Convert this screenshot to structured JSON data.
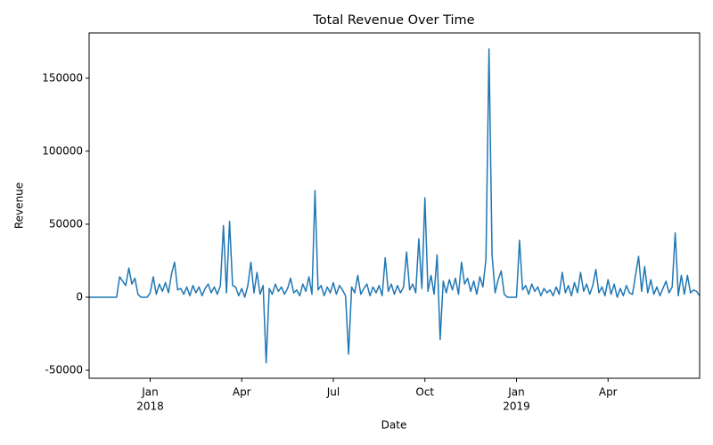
{
  "chart_data": {
    "type": "line",
    "title": "Total Revenue Over Time",
    "x_label": "Date",
    "y_label": "Revenue",
    "color": "#1f77b4",
    "x": [
      0,
      0.1,
      0.2,
      0.3,
      0.4,
      0.5,
      0.6,
      0.7,
      0.8,
      0.9,
      1,
      1.1,
      1.2,
      1.3,
      1.4,
      1.5,
      1.6,
      1.7,
      1.8,
      1.9,
      2,
      2.1,
      2.2,
      2.3,
      2.4,
      2.5,
      2.6,
      2.7,
      2.8,
      2.9,
      3,
      3.1,
      3.2,
      3.3,
      3.4,
      3.5,
      3.6,
      3.7,
      3.8,
      3.9,
      4,
      4.1,
      4.2,
      4.3,
      4.4,
      4.5,
      4.6,
      4.7,
      4.8,
      4.9,
      5,
      5.1,
      5.2,
      5.3,
      5.4,
      5.5,
      5.6,
      5.7,
      5.8,
      5.9,
      6,
      6.1,
      6.2,
      6.3,
      6.4,
      6.5,
      6.6,
      6.7,
      6.8,
      6.9,
      7,
      7.1,
      7.2,
      7.3,
      7.4,
      7.5,
      7.6,
      7.7,
      7.8,
      7.9,
      8,
      8.1,
      8.2,
      8.3,
      8.4,
      8.5,
      8.6,
      8.7,
      8.8,
      8.9,
      9,
      9.1,
      9.2,
      9.3,
      9.4,
      9.5,
      9.6,
      9.7,
      9.8,
      9.9,
      10,
      10.1,
      10.2,
      10.3,
      10.4,
      10.5,
      10.6,
      10.7,
      10.8,
      10.9,
      11,
      11.1,
      11.2,
      11.3,
      11.4,
      11.5,
      11.6,
      11.7,
      11.8,
      11.9,
      12,
      12.1,
      12.2,
      12.3,
      12.4,
      12.5,
      12.6,
      12.7,
      12.8,
      12.9,
      13,
      13.1,
      13.2,
      13.3,
      13.4,
      13.5,
      13.6,
      13.7,
      13.8,
      13.9,
      14,
      14.1,
      14.2,
      14.3,
      14.4,
      14.5,
      14.6,
      14.7,
      14.8,
      14.9,
      15,
      15.1,
      15.2,
      15.3,
      15.4,
      15.5,
      15.6,
      15.7,
      15.8,
      15.9,
      16,
      16.1,
      16.2,
      16.3,
      16.4,
      16.5,
      16.6,
      16.7,
      16.8,
      16.9,
      17,
      17.1,
      17.2,
      17.3,
      17.4,
      17.5,
      17.6,
      17.7,
      17.8,
      17.9,
      18,
      18.1,
      18.2,
      18.3,
      18.4,
      18.5,
      18.6,
      18.7,
      18.8,
      18.9,
      19,
      19.1,
      19.2,
      19.3,
      19.4,
      19.5,
      19.6,
      19.7,
      19.8,
      19.9,
      20
    ],
    "values": [
      0,
      0,
      0,
      0,
      0,
      0,
      0,
      0,
      0,
      0,
      14000,
      11000,
      8000,
      20000,
      9000,
      13000,
      2000,
      0,
      0,
      0,
      3000,
      14000,
      2000,
      9000,
      4000,
      10000,
      3000,
      16000,
      24000,
      5000,
      6000,
      2000,
      7000,
      1000,
      8000,
      3000,
      7000,
      1000,
      6000,
      9000,
      3000,
      7000,
      2000,
      8000,
      49000,
      3000,
      52000,
      8000,
      7000,
      1000,
      6000,
      0,
      8000,
      24000,
      3000,
      17000,
      2000,
      8000,
      -45000,
      6000,
      2000,
      9000,
      4000,
      7000,
      2000,
      6000,
      13000,
      3000,
      5000,
      1000,
      9000,
      4000,
      14000,
      2000,
      73000,
      5000,
      8000,
      1000,
      7000,
      3000,
      10000,
      2000,
      8000,
      5000,
      1000,
      -39000,
      7000,
      3000,
      15000,
      2000,
      6000,
      9000,
      1000,
      7000,
      3000,
      8000,
      1000,
      27000,
      4000,
      9000,
      2000,
      8000,
      3000,
      7000,
      31000,
      5000,
      9000,
      3000,
      40000,
      6000,
      68000,
      4000,
      15000,
      2000,
      29000,
      -29000,
      11000,
      3000,
      12000,
      5000,
      13000,
      2000,
      24000,
      9000,
      13000,
      4000,
      11000,
      2000,
      14000,
      7000,
      26000,
      170000,
      29000,
      3000,
      12000,
      18000,
      2000,
      0,
      0,
      0,
      0,
      39000,
      5000,
      8000,
      2000,
      9000,
      4000,
      7000,
      1000,
      6000,
      3000,
      5000,
      1000,
      7000,
      2000,
      17000,
      3000,
      8000,
      1000,
      10000,
      3000,
      17000,
      4000,
      9000,
      2000,
      8000,
      19000,
      3000,
      7000,
      1000,
      12000,
      2000,
      9000,
      0,
      6000,
      1000,
      8000,
      3000,
      2000,
      15000,
      28000,
      4000,
      21000,
      3000,
      12000,
      2000,
      7000,
      1000,
      6000,
      11000,
      3000,
      7000,
      44000,
      1000,
      15000,
      2000,
      15000,
      3000,
      5000,
      4000,
      1000
    ],
    "xlim": [
      0,
      20
    ],
    "xticks": [
      {
        "value": 2,
        "label": "Jan"
      },
      {
        "value": 5,
        "label": "Apr"
      },
      {
        "value": 8,
        "label": "Jul"
      },
      {
        "value": 11,
        "label": "Oct"
      },
      {
        "value": 14,
        "label": "Jan"
      },
      {
        "value": 17,
        "label": "Apr"
      }
    ],
    "xtick_years": [
      {
        "value": 2,
        "label": "2018"
      },
      {
        "value": 14,
        "label": "2019"
      }
    ],
    "ylim": [
      -55500,
      181000
    ],
    "yticks": [
      -50000,
      0,
      50000,
      100000,
      150000
    ]
  }
}
